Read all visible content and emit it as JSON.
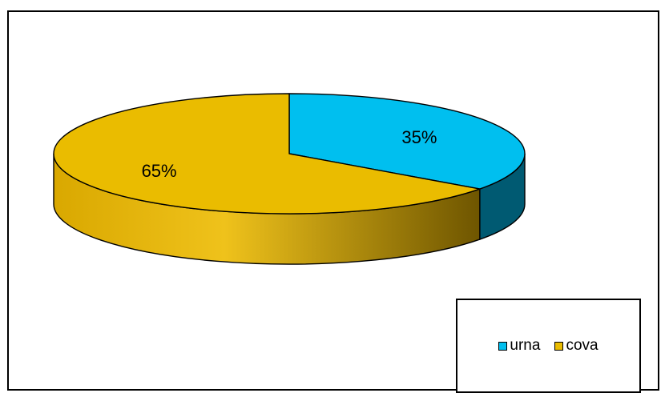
{
  "chart_data": {
    "type": "pie",
    "style": "3d",
    "series": [
      {
        "label": "urna",
        "value": 35,
        "display": "35%",
        "color": "#00BFEF",
        "side_color": "#005A72"
      },
      {
        "label": "cova",
        "value": 65,
        "display": "65%",
        "color": "#EABC00",
        "side_color": "#6E5500"
      }
    ],
    "legend": {
      "position": "bottom-right",
      "entries": [
        "urna",
        "cova"
      ]
    }
  }
}
